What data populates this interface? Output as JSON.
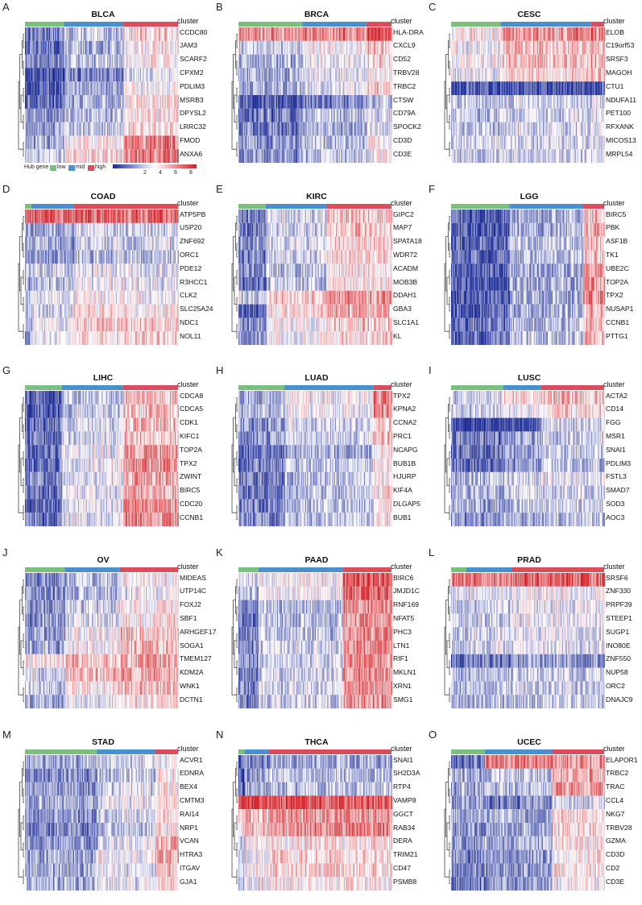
{
  "chart_data": [
    {
      "type": "heatmap",
      "letter": "A",
      "title": "BLCA",
      "cluster_label": "cluster",
      "clusters": [
        0.22,
        0.33,
        0.31
      ],
      "genes": [
        "CCDC80",
        "JAM3",
        "SCARF2",
        "CPXM2",
        "PDLIM3",
        "MSRB3",
        "DPYSL2",
        "LRRC32",
        "FMOD",
        "ANXA6"
      ],
      "rows": [
        [
          -0.6,
          -0.3,
          0.2
        ],
        [
          -0.7,
          -0.4,
          0.1
        ],
        [
          -0.6,
          -0.3,
          0.1
        ],
        [
          -0.9,
          -0.6,
          -0.1
        ],
        [
          -0.8,
          -0.5,
          0.0
        ],
        [
          -0.7,
          -0.4,
          0.1
        ],
        [
          -0.5,
          -0.3,
          0.1
        ],
        [
          -0.5,
          -0.2,
          0.2
        ],
        [
          -0.4,
          0.1,
          0.6
        ],
        [
          -0.3,
          0.1,
          0.6
        ]
      ]
    },
    {
      "type": "heatmap",
      "letter": "B",
      "title": "BRCA",
      "cluster_label": "cluster",
      "clusters": [
        0.38,
        0.38,
        0.15
      ],
      "genes": [
        "HLA-DRA",
        "CXCL9",
        "CD52",
        "TRBV28",
        "TRBC2",
        "CTSW",
        "CD79A",
        "SPOCK2",
        "CD3D",
        "CD3E"
      ],
      "rows": [
        [
          0.5,
          0.6,
          0.8
        ],
        [
          -0.2,
          0.0,
          0.3
        ],
        [
          -0.4,
          -0.1,
          0.2
        ],
        [
          -0.4,
          -0.1,
          0.1
        ],
        [
          -0.4,
          -0.1,
          0.2
        ],
        [
          -0.8,
          -0.6,
          -0.3
        ],
        [
          -0.6,
          -0.3,
          -0.1
        ],
        [
          -0.6,
          -0.4,
          -0.1
        ],
        [
          -0.5,
          -0.3,
          0.0
        ],
        [
          -0.5,
          -0.3,
          0.0
        ]
      ]
    },
    {
      "type": "heatmap",
      "letter": "C",
      "title": "CESC",
      "cluster_label": "cluster",
      "clusters": [
        0.3,
        0.55,
        0.08
      ],
      "genes": [
        "ELOB",
        "C19orf53",
        "SRSF3",
        "MAGOH",
        "CTU1",
        "NDUFA11",
        "PET100",
        "RFXANK",
        "MICOS13",
        "MRPL54"
      ],
      "rows": [
        [
          0.1,
          0.5,
          0.6
        ],
        [
          -0.1,
          0.3,
          0.4
        ],
        [
          0.0,
          0.3,
          0.4
        ],
        [
          -0.1,
          0.2,
          0.3
        ],
        [
          -0.8,
          -0.9,
          -0.8
        ],
        [
          -0.3,
          -0.2,
          -0.1
        ],
        [
          -0.3,
          -0.2,
          -0.1
        ],
        [
          -0.3,
          -0.2,
          -0.1
        ],
        [
          -0.2,
          -0.2,
          -0.1
        ],
        [
          -0.3,
          -0.2,
          -0.1
        ]
      ]
    },
    {
      "type": "heatmap",
      "letter": "D",
      "title": "COAD",
      "cluster_label": "cluster",
      "clusters": [
        0.04,
        0.26,
        0.64
      ],
      "genes": [
        "ATP5PB",
        "USP20",
        "ZNF692",
        "ORC1",
        "PDE12",
        "R3HCC1",
        "CLK2",
        "SLC25A24",
        "NDC1",
        "NOL11"
      ],
      "rows": [
        [
          0.8,
          0.7,
          0.7
        ],
        [
          -0.4,
          -0.4,
          -0.2
        ],
        [
          -0.4,
          -0.4,
          -0.2
        ],
        [
          -0.6,
          -0.5,
          -0.3
        ],
        [
          -0.3,
          -0.2,
          -0.1
        ],
        [
          -0.4,
          -0.3,
          -0.1
        ],
        [
          -0.3,
          -0.1,
          0.0
        ],
        [
          -0.5,
          -0.2,
          0.1
        ],
        [
          -0.4,
          -0.1,
          0.2
        ],
        [
          -0.4,
          -0.1,
          0.2
        ]
      ]
    },
    {
      "type": "heatmap",
      "letter": "E",
      "title": "KIRC",
      "cluster_label": "cluster",
      "clusters": [
        0.17,
        0.38,
        0.41
      ],
      "genes": [
        "GIPC2",
        "MAP7",
        "SPATA18",
        "WDR72",
        "ACADM",
        "MOB3B",
        "DDAH1",
        "GBA3",
        "SLC1A1",
        "KL"
      ],
      "rows": [
        [
          -0.6,
          -0.2,
          0.3
        ],
        [
          -0.6,
          -0.2,
          0.3
        ],
        [
          -0.5,
          -0.2,
          0.2
        ],
        [
          -0.6,
          -0.2,
          0.2
        ],
        [
          -0.6,
          -0.3,
          0.1
        ],
        [
          -0.7,
          -0.3,
          0.1
        ],
        [
          -0.2,
          0.3,
          0.5
        ],
        [
          -0.8,
          0.1,
          0.4
        ],
        [
          -0.5,
          0.0,
          0.3
        ],
        [
          -0.5,
          0.0,
          0.2
        ]
      ]
    },
    {
      "type": "heatmap",
      "letter": "F",
      "title": "LGG",
      "cluster_label": "cluster",
      "clusters": [
        0.38,
        0.48,
        0.14
      ],
      "genes": [
        "BIRC5",
        "PBK",
        "ASF1B",
        "TK1",
        "UBE2C",
        "TOP2A",
        "TPX2",
        "NUSAP1",
        "CCNB1",
        "PTTG1"
      ],
      "rows": [
        [
          -0.8,
          -0.4,
          0.3
        ],
        [
          -0.8,
          -0.4,
          0.4
        ],
        [
          -0.7,
          -0.3,
          0.3
        ],
        [
          -0.7,
          -0.3,
          0.3
        ],
        [
          -0.8,
          -0.4,
          0.5
        ],
        [
          -0.8,
          -0.4,
          0.5
        ],
        [
          -0.8,
          -0.4,
          0.5
        ],
        [
          -0.8,
          -0.4,
          0.4
        ],
        [
          -0.7,
          -0.3,
          0.3
        ],
        [
          -0.7,
          -0.3,
          0.3
        ]
      ]
    },
    {
      "type": "heatmap",
      "letter": "G",
      "title": "LIHC",
      "cluster_label": "cluster",
      "clusters": [
        0.24,
        0.4,
        0.36
      ],
      "genes": [
        "CDCA8",
        "CDCA5",
        "CDK1",
        "KIFC1",
        "TOP2A",
        "TPX2",
        "ZWINT",
        "BIRC5",
        "CDC20",
        "CCNB1"
      ],
      "rows": [
        [
          -0.8,
          -0.3,
          0.3
        ],
        [
          -0.8,
          -0.3,
          0.3
        ],
        [
          -0.7,
          -0.2,
          0.3
        ],
        [
          -0.7,
          -0.2,
          0.3
        ],
        [
          -0.7,
          -0.1,
          0.5
        ],
        [
          -0.7,
          -0.1,
          0.5
        ],
        [
          -0.6,
          -0.1,
          0.4
        ],
        [
          -0.7,
          -0.1,
          0.4
        ],
        [
          -0.7,
          -0.1,
          0.5
        ],
        [
          -0.7,
          -0.1,
          0.5
        ]
      ]
    },
    {
      "type": "heatmap",
      "letter": "H",
      "title": "LUAD",
      "cluster_label": "cluster",
      "clusters": [
        0.3,
        0.58,
        0.12
      ],
      "genes": [
        "TPX2",
        "KPNA2",
        "CCNA2",
        "PRC1",
        "NCAPG",
        "BUB1B",
        "HJURP",
        "KIF4A",
        "DLGAP5",
        "BUB1"
      ],
      "rows": [
        [
          -0.4,
          0.0,
          0.6
        ],
        [
          -0.3,
          0.0,
          0.5
        ],
        [
          -0.5,
          -0.2,
          0.3
        ],
        [
          -0.5,
          -0.2,
          0.3
        ],
        [
          -0.7,
          -0.4,
          0.1
        ],
        [
          -0.6,
          -0.3,
          0.1
        ],
        [
          -0.6,
          -0.3,
          0.1
        ],
        [
          -0.6,
          -0.3,
          0.1
        ],
        [
          -0.6,
          -0.3,
          0.1
        ],
        [
          -0.6,
          -0.3,
          0.1
        ]
      ]
    },
    {
      "type": "heatmap",
      "letter": "I",
      "title": "LUSC",
      "cluster_label": "cluster",
      "clusters": [
        0.34,
        0.25,
        0.41
      ],
      "genes": [
        "ACTA2",
        "CD14",
        "FGG",
        "MSR1",
        "SNAI1",
        "PDLIM3",
        "FSTL3",
        "SMAD7",
        "SOD3",
        "AOC3"
      ],
      "rows": [
        [
          -0.2,
          0.2,
          0.3
        ],
        [
          -0.2,
          0.0,
          0.2
        ],
        [
          -0.9,
          -0.9,
          -0.2
        ],
        [
          -0.6,
          -0.4,
          -0.2
        ],
        [
          -0.7,
          -0.5,
          -0.3
        ],
        [
          -0.7,
          -0.5,
          -0.3
        ],
        [
          -0.3,
          -0.2,
          -0.1
        ],
        [
          -0.4,
          -0.3,
          -0.2
        ],
        [
          -0.4,
          -0.3,
          -0.2
        ],
        [
          -0.5,
          -0.4,
          -0.3
        ]
      ]
    },
    {
      "type": "heatmap",
      "letter": "J",
      "title": "OV",
      "cluster_label": "cluster",
      "clusters": [
        0.26,
        0.36,
        0.38
      ],
      "genes": [
        "MIDEAS",
        "UTP14C",
        "FOXJ2",
        "SBF1",
        "ARHGEF17",
        "SOGA1",
        "TMEM127",
        "KDM2A",
        "WNK1",
        "DCTN1"
      ],
      "rows": [
        [
          -0.6,
          -0.3,
          0.0
        ],
        [
          -0.5,
          -0.3,
          -0.1
        ],
        [
          -0.5,
          -0.2,
          0.1
        ],
        [
          -0.5,
          -0.2,
          0.1
        ],
        [
          -0.5,
          0.0,
          0.3
        ],
        [
          -0.4,
          0.0,
          0.3
        ],
        [
          0.1,
          0.3,
          0.4
        ],
        [
          -0.2,
          0.3,
          0.4
        ],
        [
          -0.3,
          0.1,
          0.3
        ],
        [
          -0.4,
          -0.1,
          0.1
        ]
      ]
    },
    {
      "type": "heatmap",
      "letter": "K",
      "title": "PAAD",
      "cluster_label": "cluster",
      "clusters": [
        0.13,
        0.55,
        0.32
      ],
      "genes": [
        "BIRC6",
        "JMJD1C",
        "RNF169",
        "NFAT5",
        "PHC3",
        "LTN1",
        "RIF1",
        "MKLN1",
        "XRN1",
        "SMG1"
      ],
      "rows": [
        [
          -0.2,
          0.0,
          0.8
        ],
        [
          -0.3,
          0.0,
          0.7
        ],
        [
          -0.7,
          -0.3,
          0.5
        ],
        [
          -0.7,
          -0.3,
          0.5
        ],
        [
          -0.6,
          -0.3,
          0.5
        ],
        [
          -0.6,
          -0.2,
          0.5
        ],
        [
          -0.6,
          -0.2,
          0.5
        ],
        [
          -0.6,
          -0.2,
          0.5
        ],
        [
          -0.6,
          -0.2,
          0.5
        ],
        [
          -0.6,
          -0.2,
          0.5
        ]
      ]
    },
    {
      "type": "heatmap",
      "letter": "L",
      "title": "PRAD",
      "cluster_label": "cluster",
      "clusters": [
        0.1,
        0.3,
        0.6
      ],
      "genes": [
        "SRSF6",
        "ZNF330",
        "PRPF39",
        "STEEP1",
        "SUGP1",
        "INO80E",
        "ZNF550",
        "NUP58",
        "ORC2",
        "DNAJC9"
      ],
      "rows": [
        [
          0.6,
          0.6,
          0.7
        ],
        [
          -0.2,
          -0.1,
          0.0
        ],
        [
          -0.3,
          -0.2,
          -0.1
        ],
        [
          -0.3,
          -0.2,
          -0.1
        ],
        [
          -0.3,
          -0.2,
          -0.1
        ],
        [
          -0.3,
          -0.2,
          -0.1
        ],
        [
          -0.7,
          -0.6,
          -0.5
        ],
        [
          -0.4,
          -0.3,
          -0.2
        ],
        [
          -0.4,
          -0.3,
          -0.2
        ],
        [
          -0.5,
          -0.4,
          -0.3
        ]
      ]
    },
    {
      "type": "heatmap",
      "letter": "M",
      "title": "STAD",
      "cluster_label": "cluster",
      "clusters": [
        0.47,
        0.38,
        0.15
      ],
      "genes": [
        "ACVR1",
        "EDNRA",
        "BEX4",
        "CMTM3",
        "RAI14",
        "NRP1",
        "VCAN",
        "HTRA3",
        "ITGAV",
        "GJA1"
      ],
      "rows": [
        [
          -0.4,
          -0.2,
          0.0
        ],
        [
          -0.5,
          -0.3,
          0.1
        ],
        [
          -0.5,
          -0.2,
          0.1
        ],
        [
          -0.4,
          -0.1,
          0.2
        ],
        [
          -0.5,
          -0.2,
          0.1
        ],
        [
          -0.6,
          -0.3,
          0.1
        ],
        [
          -0.5,
          -0.1,
          0.4
        ],
        [
          -0.4,
          0.0,
          0.4
        ],
        [
          -0.4,
          -0.1,
          0.3
        ],
        [
          -0.4,
          -0.1,
          0.2
        ]
      ]
    },
    {
      "type": "heatmap",
      "letter": "N",
      "title": "THCA",
      "cluster_label": "cluster",
      "clusters": [
        0.04,
        0.16,
        0.8
      ],
      "genes": [
        "SNAI1",
        "SH2D3A",
        "RTP4",
        "VAMP8",
        "GGCT",
        "RAB34",
        "DERA",
        "TRIM21",
        "CD47",
        "PSMB8"
      ],
      "rows": [
        [
          -0.8,
          -0.6,
          -0.4
        ],
        [
          -0.7,
          -0.5,
          -0.3
        ],
        [
          -0.7,
          -0.5,
          -0.3
        ],
        [
          0.9,
          0.9,
          0.8
        ],
        [
          0.1,
          0.3,
          0.5
        ],
        [
          0.1,
          0.3,
          0.5
        ],
        [
          -0.2,
          0.0,
          0.1
        ],
        [
          -0.2,
          0.0,
          0.2
        ],
        [
          -0.2,
          0.0,
          0.2
        ],
        [
          -0.3,
          -0.1,
          0.1
        ]
      ]
    },
    {
      "type": "heatmap",
      "letter": "O",
      "title": "UCEC",
      "cluster_label": "cluster",
      "clusters": [
        0.22,
        0.44,
        0.34
      ],
      "genes": [
        "ELAPOR1",
        "TRBC2",
        "TRAC",
        "CCL4",
        "NKG7",
        "TRBV28",
        "GZMA",
        "CD3D",
        "CD2",
        "CD3E"
      ],
      "rows": [
        [
          -0.6,
          0.6,
          0.5
        ],
        [
          -0.4,
          -0.3,
          0.4
        ],
        [
          -0.4,
          -0.3,
          0.5
        ],
        [
          -0.5,
          -0.6,
          -0.2
        ],
        [
          -0.4,
          -0.4,
          0.2
        ],
        [
          -0.5,
          -0.4,
          0.2
        ],
        [
          -0.5,
          -0.4,
          0.1
        ],
        [
          -0.6,
          -0.5,
          0.1
        ],
        [
          -0.6,
          -0.5,
          0.1
        ],
        [
          -0.6,
          -0.5,
          0.0
        ]
      ]
    }
  ],
  "legend": {
    "hub_gene_label": "Hub gene",
    "low": "low",
    "mid": "mid",
    "high": "high",
    "ticks": [
      "2",
      "4",
      "6",
      "8"
    ],
    "colors": {
      "low": "#79c07e",
      "mid": "#4a90cf",
      "high": "#db4d5c",
      "blue": "#1b2a94",
      "red": "#d11f26"
    }
  }
}
